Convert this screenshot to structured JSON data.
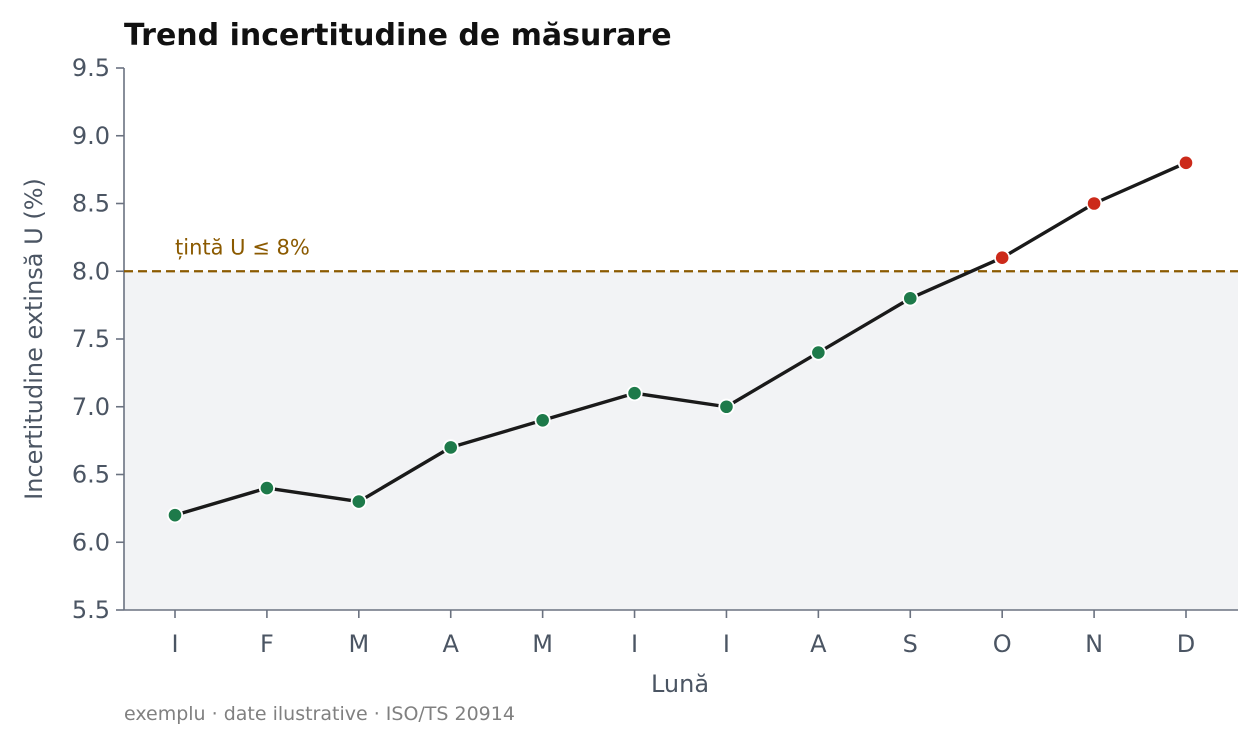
{
  "chart_data": {
    "type": "line",
    "title": "Trend incertitudine de măsurare",
    "xlabel": "Lună",
    "ylabel": "Incertitudine extinsă U (%)",
    "categories": [
      "I",
      "F",
      "M",
      "A",
      "M",
      "I",
      "I",
      "A",
      "S",
      "O",
      "N",
      "D"
    ],
    "series": [
      {
        "values": [
          6.2,
          6.4,
          6.3,
          6.7,
          6.9,
          7.1,
          7.0,
          7.4,
          7.8,
          8.1,
          8.5,
          8.8
        ]
      }
    ],
    "ylim": [
      5.5,
      9.5
    ],
    "yticks": [
      "5.5",
      "6.0",
      "6.5",
      "7.0",
      "7.5",
      "8.0",
      "8.5",
      "9.0",
      "9.5"
    ],
    "target": {
      "value": 8.0,
      "label": "țintă U ≤ 8%"
    },
    "grid": false,
    "footnote": "exemplu · date ilustrative · ISO/TS 20914",
    "colors": {
      "line": "#1a1a1a",
      "point_ok": "#1e7a4a",
      "point_over": "#cc2a1a",
      "target": "#8b5a00",
      "band": "#f2f3f5",
      "axis": "#6b7280"
    }
  }
}
